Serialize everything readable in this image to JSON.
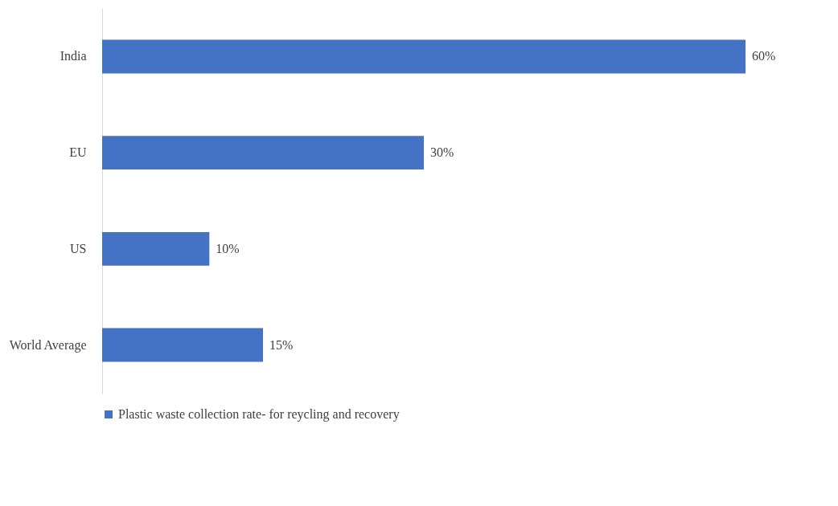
{
  "chart_data": {
    "type": "bar",
    "orientation": "horizontal",
    "categories": [
      "India",
      "EU",
      "US",
      "World Average"
    ],
    "series": [
      {
        "name": "Plastic waste collection rate- for reycling and recovery",
        "color": "#4472c4",
        "values": [
          60,
          30,
          10,
          15
        ],
        "value_labels": [
          "60%",
          "30%",
          "10%",
          "15%"
        ]
      }
    ],
    "legend": "bottom",
    "grid": false
  }
}
